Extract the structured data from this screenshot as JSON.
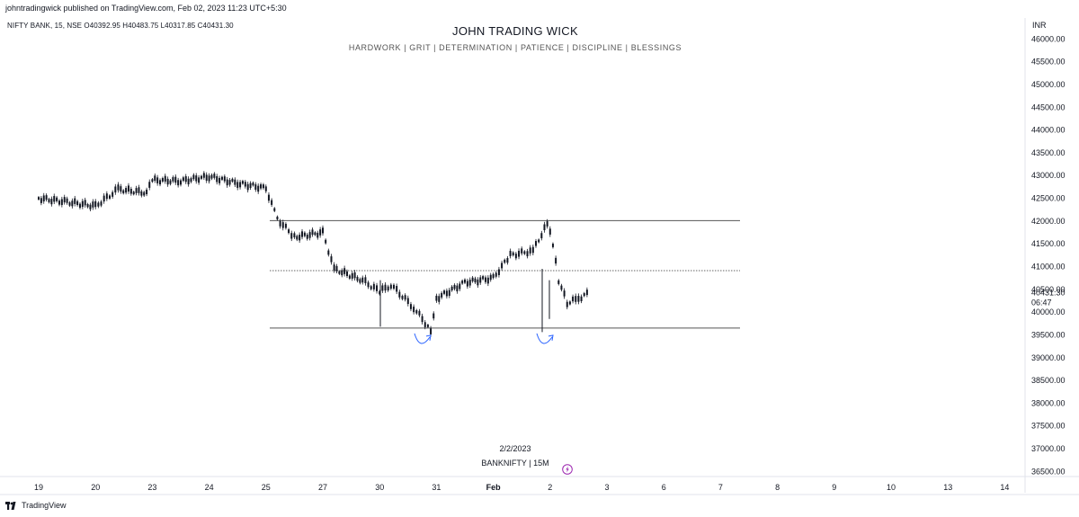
{
  "header": {
    "published_line": "johntradingwick published on TradingView.com, Feb 02, 2023 11:23 UTC+5:30",
    "ohlc_line": "NIFTY BANK, 15, NSE  O40392.95  H40483.75  L40317.85  C40431.30"
  },
  "chart_data": {
    "type": "candlestick",
    "title": "JOHN TRADING WICK",
    "subtitle": "HARDWORK  |  GRIT  |  DETERMINATION  |  PATIENCE  |  DISCIPLINE  |  BLESSINGS",
    "currency": "INR",
    "symbol_label": "BANKNIFTY  |  15M",
    "date_label": "2/2/2023",
    "y_axis": {
      "range": [
        36250,
        46125
      ],
      "ticks": [
        "46000.00",
        "45500.00",
        "45000.00",
        "44500.00",
        "44000.00",
        "43500.00",
        "43000.00",
        "42500.00",
        "42000.00",
        "41500.00",
        "41000.00",
        "40500.00",
        "40000.00",
        "39500.00",
        "39000.00",
        "38500.00",
        "38000.00",
        "37500.00",
        "37000.00",
        "36500.00"
      ]
    },
    "x_axis": {
      "tick_labels": [
        "19",
        "20",
        "23",
        "24",
        "25",
        "27",
        "30",
        "31",
        "Feb",
        "2",
        "3",
        "6",
        "7",
        "8",
        "9",
        "10",
        "13",
        "14"
      ]
    },
    "last_price": {
      "label": "40431.30",
      "countdown": "06:47",
      "value": 40431.3
    },
    "horizontal_lines": [
      {
        "value": 42010,
        "style": "solid"
      },
      {
        "value": 40910,
        "style": "dotted"
      },
      {
        "value": 39650,
        "style": "solid"
      }
    ],
    "price_path": [
      {
        "x": "19",
        "price": 42500
      },
      {
        "x": "19.5",
        "price": 42420
      },
      {
        "x": "20",
        "price": 42330
      },
      {
        "x": "20.4",
        "price": 42700
      },
      {
        "x": "20.9",
        "price": 42620
      },
      {
        "x": "23",
        "price": 42900
      },
      {
        "x": "23.5",
        "price": 42880
      },
      {
        "x": "24",
        "price": 42980
      },
      {
        "x": "24.5",
        "price": 42830
      },
      {
        "x": "25",
        "price": 42720
      },
      {
        "x": "25.2",
        "price": 42050
      },
      {
        "x": "25.5",
        "price": 41650
      },
      {
        "x": "27",
        "price": 41750
      },
      {
        "x": "27.2",
        "price": 40950
      },
      {
        "x": "27.7",
        "price": 40700
      },
      {
        "x": "30",
        "price": 40450
      },
      {
        "x": "30.2",
        "price": 40600
      },
      {
        "x": "30.6",
        "price": 40100
      },
      {
        "x": "30.9",
        "price": 39600
      },
      {
        "x": "31",
        "price": 40300
      },
      {
        "x": "31.5",
        "price": 40650
      },
      {
        "x": "Feb",
        "price": 40750
      },
      {
        "x": "Feb.3",
        "price": 41250
      },
      {
        "x": "Feb.7",
        "price": 41350
      },
      {
        "x": "Feb.95",
        "price": 41950
      },
      {
        "x": "2.05",
        "price": 41500
      },
      {
        "x": "2.15",
        "price": 40700
      },
      {
        "x": "2.3",
        "price": 40200
      },
      {
        "x": "2.5",
        "price": 40300
      },
      {
        "x": "2.7",
        "price": 40431.3
      }
    ]
  },
  "footer": {
    "brand": "TradingView"
  }
}
